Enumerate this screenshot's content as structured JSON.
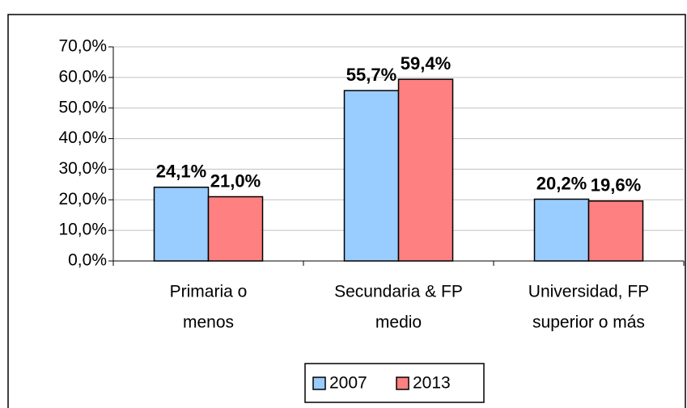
{
  "chart_data": {
    "type": "bar",
    "categories": [
      [
        "Primaria o",
        "menos"
      ],
      [
        "Secundaria & FP",
        "medio"
      ],
      [
        "Universidad, FP",
        "superior o más"
      ]
    ],
    "series": [
      {
        "name": "2007",
        "color": "#99ccff",
        "values": [
          24.1,
          55.7,
          20.2
        ],
        "value_labels": [
          "24,1%",
          "55,7%",
          "20,2%"
        ]
      },
      {
        "name": "2013",
        "color": "#ff8080",
        "values": [
          21.0,
          59.4,
          19.6
        ],
        "value_labels": [
          "21,0%",
          "59,4%",
          "19,6%"
        ]
      }
    ],
    "ylim": [
      0,
      70
    ],
    "yticks": [
      {
        "value": 0,
        "label": "0,0%"
      },
      {
        "value": 10,
        "label": "10,0%"
      },
      {
        "value": 20,
        "label": "20,0%"
      },
      {
        "value": 30,
        "label": "30,0%"
      },
      {
        "value": 40,
        "label": "40,0%"
      },
      {
        "value": 50,
        "label": "50,0%"
      },
      {
        "value": 60,
        "label": "60,0%"
      },
      {
        "value": 70,
        "label": "70,0%"
      }
    ],
    "grid": true,
    "legend": "bottom"
  }
}
